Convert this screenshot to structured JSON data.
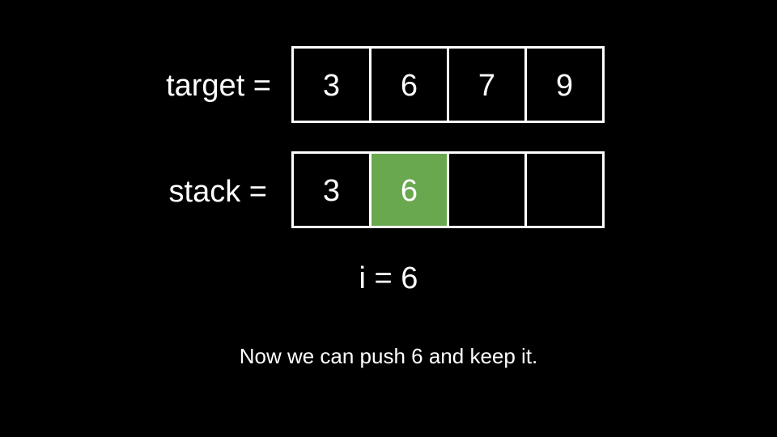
{
  "target": {
    "label": "target =",
    "cells": [
      "3",
      "6",
      "7",
      "9"
    ]
  },
  "stack": {
    "label": "stack =",
    "cells": [
      "3",
      "6",
      "",
      ""
    ],
    "highlight_index": 1,
    "highlight_color": "#6aa84f"
  },
  "index_text": "i = 6",
  "caption": "Now we can push 6 and keep it."
}
